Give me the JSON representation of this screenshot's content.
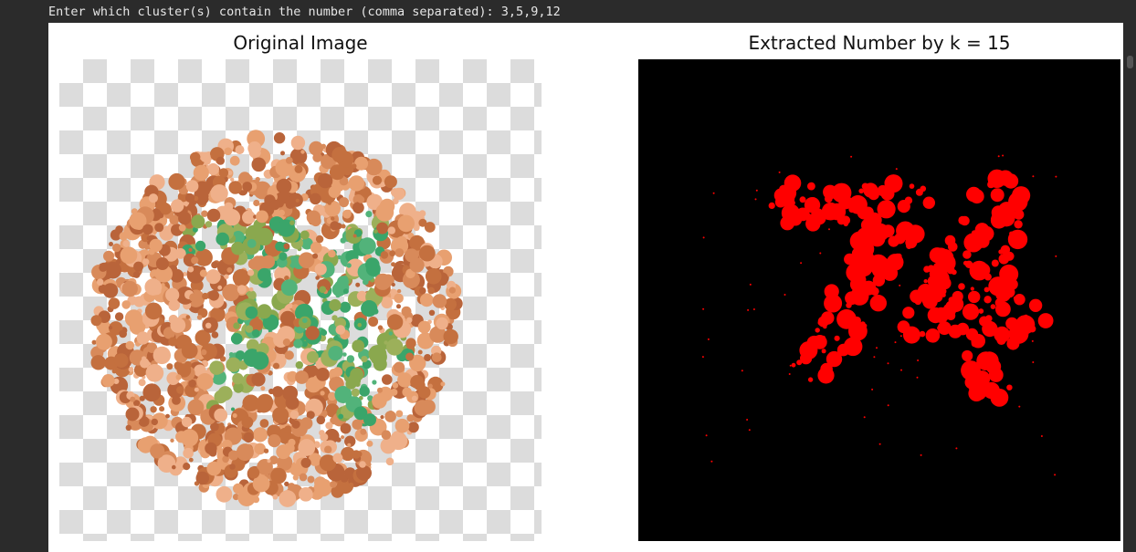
{
  "console": {
    "prompt_line": "Enter which cluster(s) contain the number (comma separated): 3,5,9,12"
  },
  "figure": {
    "left_title": "Original Image",
    "right_title": "Extracted Number by k = 15"
  },
  "colors": {
    "checker": "#dcdcdc",
    "orange_dots": [
      "#e8a070",
      "#d88a5a",
      "#c4703f",
      "#efb08a",
      "#b9643a"
    ],
    "green_dots": [
      "#3aa56a",
      "#52b37a",
      "#8aa84e",
      "#9cb05a"
    ],
    "extracted": "#ff0000",
    "panel_bg": "#000000"
  }
}
